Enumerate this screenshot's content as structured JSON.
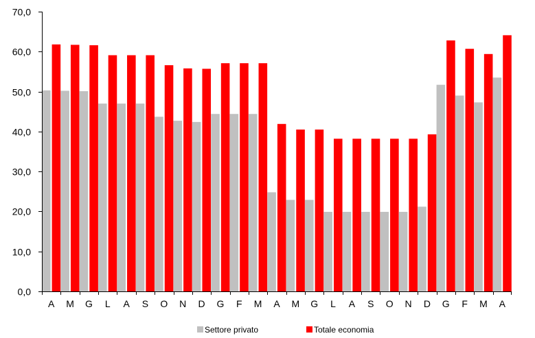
{
  "chart_data": {
    "type": "bar",
    "categories": [
      "A",
      "M",
      "G",
      "L",
      "A",
      "S",
      "O",
      "N",
      "D",
      "G",
      "F",
      "M",
      "A",
      "M",
      "G",
      "L",
      "A",
      "S",
      "O",
      "N",
      "D",
      "G",
      "F",
      "M",
      "A"
    ],
    "series": [
      {
        "name": "Settore privato",
        "color": "#c0c0c0",
        "values": [
          50.3,
          50.2,
          50.1,
          47.0,
          47.0,
          47.0,
          43.7,
          42.7,
          42.4,
          44.4,
          44.4,
          44.4,
          24.8,
          22.9,
          22.9,
          19.9,
          19.9,
          19.9,
          19.9,
          19.9,
          21.2,
          51.7,
          49.0,
          47.3,
          53.5
        ]
      },
      {
        "name": "Totale economia",
        "color": "#ff0000",
        "values": [
          61.8,
          61.7,
          61.6,
          59.1,
          59.1,
          59.1,
          56.6,
          55.8,
          55.7,
          57.1,
          57.1,
          57.1,
          41.9,
          40.5,
          40.5,
          38.2,
          38.2,
          38.2,
          38.2,
          38.2,
          39.3,
          62.8,
          60.7,
          59.4,
          64.1
        ]
      }
    ],
    "ylim": [
      0,
      70
    ],
    "yticks": [
      "0,0",
      "10,0",
      "20,0",
      "30,0",
      "40,0",
      "50,0",
      "60,0",
      "70,0"
    ],
    "grid": false,
    "legend": "bottom"
  }
}
